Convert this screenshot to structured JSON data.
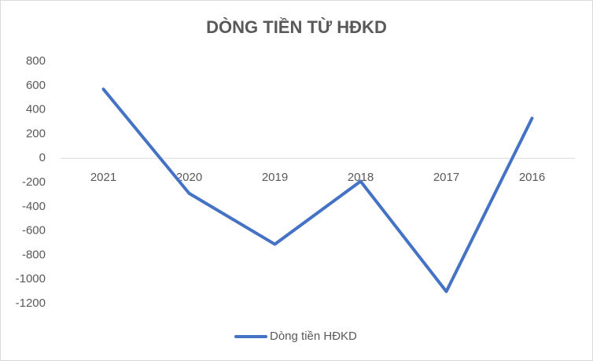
{
  "chart_data": {
    "type": "line",
    "title": "DÒNG TIỀN TỪ HĐKD",
    "categories": [
      "2021",
      "2020",
      "2019",
      "2018",
      "2017",
      "2016"
    ],
    "series": [
      {
        "name": "Dòng tiền HĐKD",
        "color": "#4472c4",
        "values": [
          570,
          -290,
          -710,
          -190,
          -1100,
          330
        ]
      }
    ],
    "ylim": [
      -1200,
      800
    ],
    "yticks": [
      -1200,
      -1000,
      -800,
      -600,
      -400,
      -200,
      0,
      200,
      400,
      600,
      800
    ],
    "grid": false,
    "legend": "bottom"
  }
}
